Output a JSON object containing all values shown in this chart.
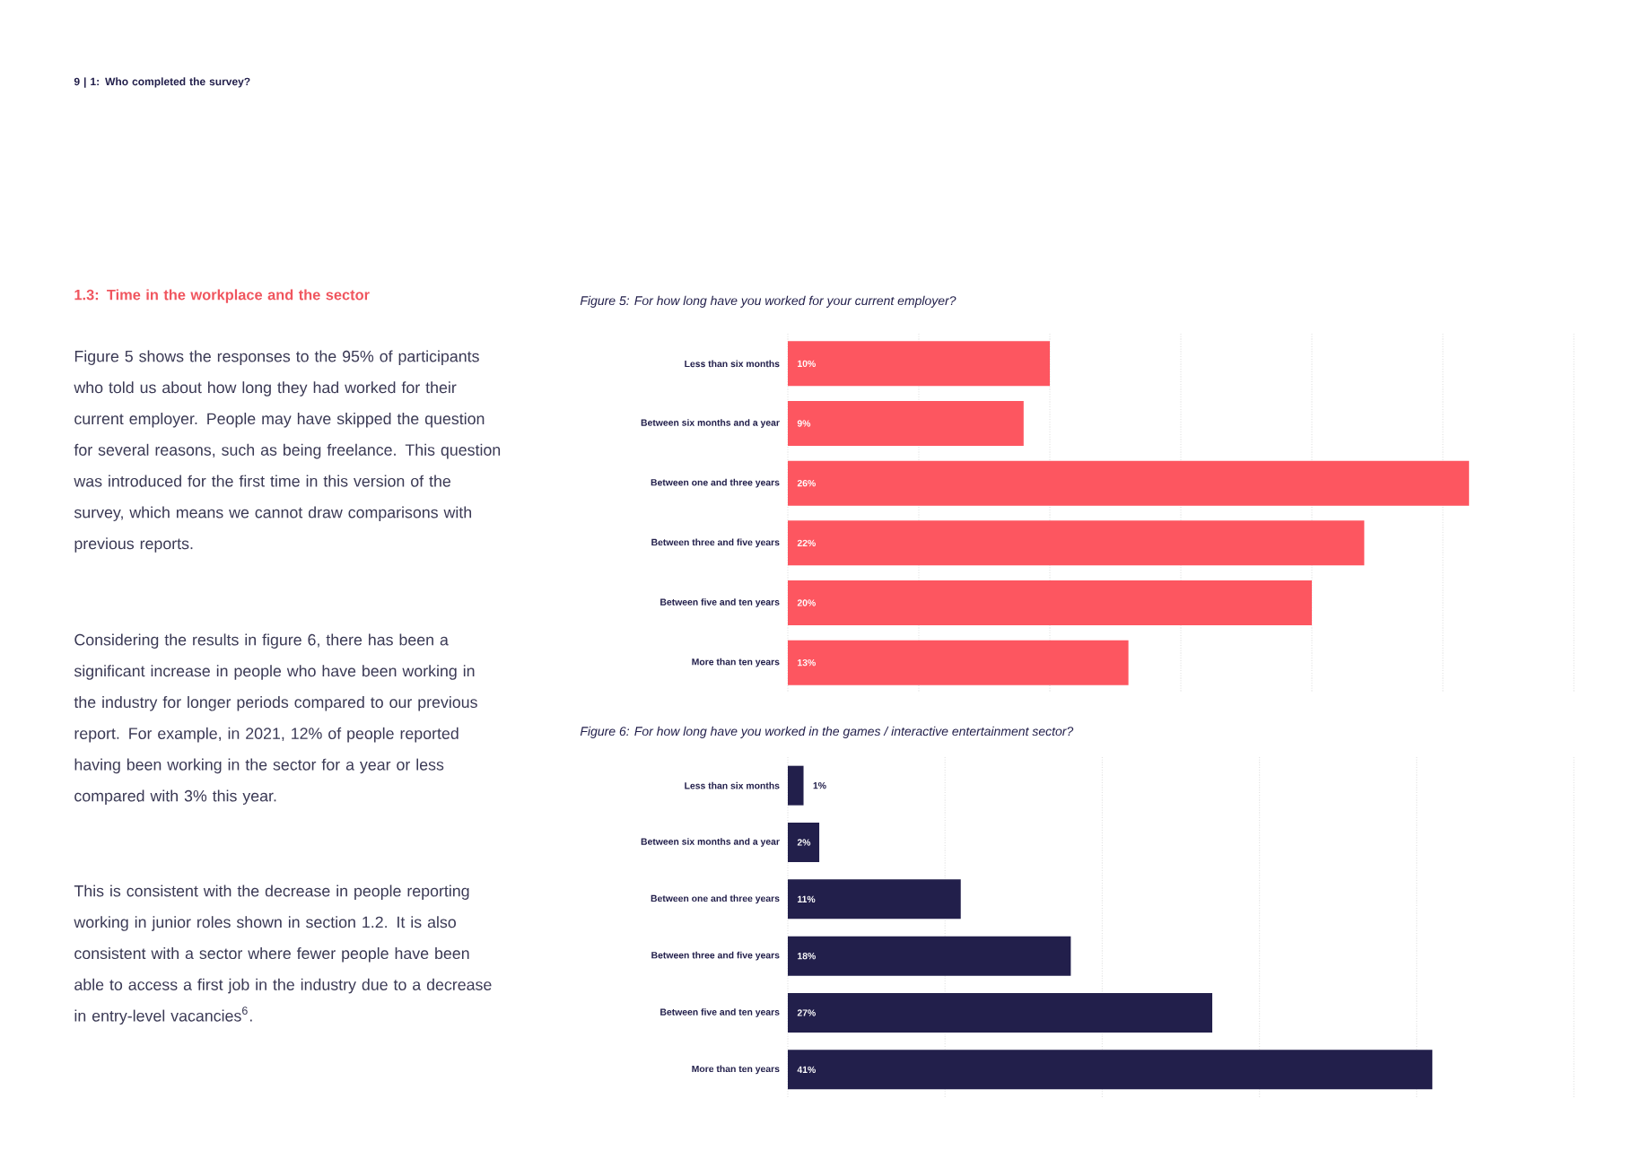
{
  "chart_data": [
    {
      "type": "bar",
      "orientation": "horizontal",
      "title": "Figure 5: For how long have you worked for your current employer?",
      "categories": [
        "Less than six months",
        "Between six months and a year",
        "Between one and three years",
        "Between three and five years",
        "Between five and ten years",
        "More than ten years"
      ],
      "values": [
        10,
        9,
        26,
        22,
        20,
        13
      ],
      "value_labels": [
        "10%",
        "9%",
        "26%",
        "22%",
        "20%",
        "13%"
      ],
      "color": "#fd5660",
      "xlim": [
        0,
        30
      ],
      "xticks": [
        {
          "value": 0,
          "label": null
        },
        {
          "value": 5,
          "label": null
        },
        {
          "value": 10,
          "label": null
        },
        {
          "value": 15,
          "label": null
        },
        {
          "value": 20,
          "label": null
        },
        {
          "value": 25,
          "label": null
        },
        {
          "value": 30,
          "label": null
        }
      ],
      "grid": "x",
      "tick_labels": "y",
      "annotations": [
        "9 | 1: Who completed the survey?",
        "1.3: Time in the workplace and the sector",
        "Figure 5 shows the responses to the 95% of participants who told us about how long they had worked for their current employer. People may have skipped the question for several reasons, such as being freelance. This question was introduced for the first time in this version of the survey, which means we cannot draw comparisons with previous reports.",
        "Considering the results in figure 6, there has been a significant increase in people who have been working in the industry for longer periods compared to our previous report. For example, in 2021, 12% of people reported having been working in the sector for a year or less compared with 3% this year.",
        "This is consistent with the decrease in people reporting working in junior roles shown in section 1.2. It is also consistent with a sector where fewer people have been able to access a first job in the industry due to a decrease in entry-level vacancies$^{6}$."
      ]
    },
    {
      "type": "bar",
      "orientation": "horizontal",
      "title": "Figure 6: For how long have you worked in the games / interactive entertainment sector?",
      "categories": [
        "Less than six months",
        "Between six months and a year",
        "Between one and three years",
        "Between three and five years",
        "Between five and ten years",
        "More than ten years"
      ],
      "values": [
        1,
        2,
        11,
        18,
        27,
        41
      ],
      "value_labels": [
        "1%",
        "2%",
        "11%",
        "18%",
        "27%",
        "41%"
      ],
      "color": "#221f4b",
      "xlim": [
        0,
        50
      ],
      "xticks": [
        {
          "value": 0,
          "label": null
        },
        {
          "value": 10,
          "label": null
        },
        {
          "value": 20,
          "label": null
        },
        {
          "value": 30,
          "label": null
        },
        {
          "value": 40,
          "label": null
        },
        {
          "value": 50,
          "label": null
        }
      ],
      "grid": "x",
      "tick_labels": "y"
    }
  ]
}
